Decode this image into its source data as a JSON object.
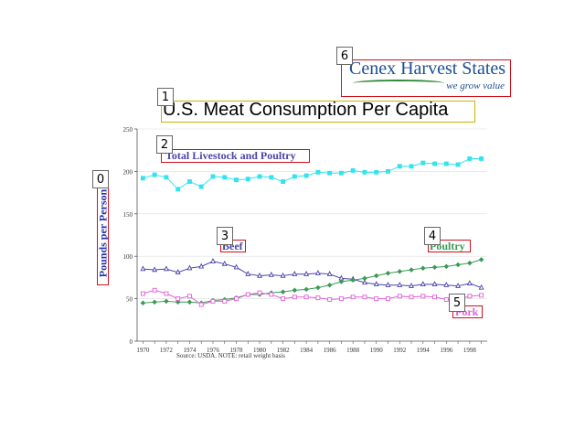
{
  "title": "U.S. Meat Consumption Per Capita",
  "logo": {
    "name": "Cenex Harvest States",
    "tagline": "we grow value"
  },
  "source_note": "Source: USDA. NOTE: retail weight basis",
  "annotation_tags": [
    "0",
    "1",
    "2",
    "3",
    "4",
    "5",
    "6"
  ],
  "colors": {
    "total": "#33e3ee",
    "beef": "#4a44a8",
    "poultry": "#3a9a52",
    "pork": "#e060d8",
    "axis": "#555555"
  },
  "chart_data": {
    "type": "line",
    "ylabel": "Pounds per Person",
    "ylim": [
      0,
      250
    ],
    "yticks": [
      0,
      50,
      100,
      150,
      200,
      250
    ],
    "xlim": [
      1970,
      1999
    ],
    "xticks": [
      1970,
      1972,
      1974,
      1976,
      1978,
      1980,
      1982,
      1984,
      1986,
      1988,
      1990,
      1992,
      1994,
      1996,
      1998
    ],
    "x": [
      1970,
      1971,
      1972,
      1973,
      1974,
      1975,
      1976,
      1977,
      1978,
      1979,
      1980,
      1981,
      1982,
      1983,
      1984,
      1985,
      1986,
      1987,
      1988,
      1989,
      1990,
      1991,
      1992,
      1993,
      1994,
      1995,
      1996,
      1997,
      1998,
      1999
    ],
    "series": [
      {
        "name": "Total Livestock and Poultry",
        "marker": "square",
        "values": [
          192,
          196,
          193,
          179,
          188,
          182,
          194,
          193,
          190,
          191,
          194,
          193,
          188,
          194,
          195,
          199,
          198,
          198,
          201,
          199,
          199,
          200,
          206,
          206,
          210,
          209,
          209,
          208,
          215,
          215
        ]
      },
      {
        "name": "Beef",
        "marker": "triangle",
        "values": [
          85,
          84,
          85,
          81,
          86,
          88,
          94,
          91,
          87,
          79,
          77,
          78,
          77,
          79,
          79,
          80,
          79,
          74,
          73,
          69,
          67,
          66,
          66,
          65,
          67,
          67,
          66,
          65,
          68,
          63
        ]
      },
      {
        "name": "Poultry",
        "marker": "diamond",
        "values": [
          45,
          46,
          47,
          46,
          46,
          45,
          48,
          49,
          51,
          55,
          55,
          57,
          58,
          60,
          61,
          63,
          66,
          70,
          72,
          74,
          77,
          80,
          82,
          84,
          86,
          87,
          88,
          90,
          92,
          96
        ]
      },
      {
        "name": "Pork",
        "marker": "square",
        "values": [
          56,
          60,
          56,
          50,
          53,
          43,
          47,
          47,
          50,
          55,
          57,
          55,
          50,
          52,
          52,
          51,
          49,
          50,
          52,
          52,
          50,
          50,
          53,
          52,
          53,
          52,
          49,
          49,
          53,
          54
        ]
      }
    ]
  }
}
